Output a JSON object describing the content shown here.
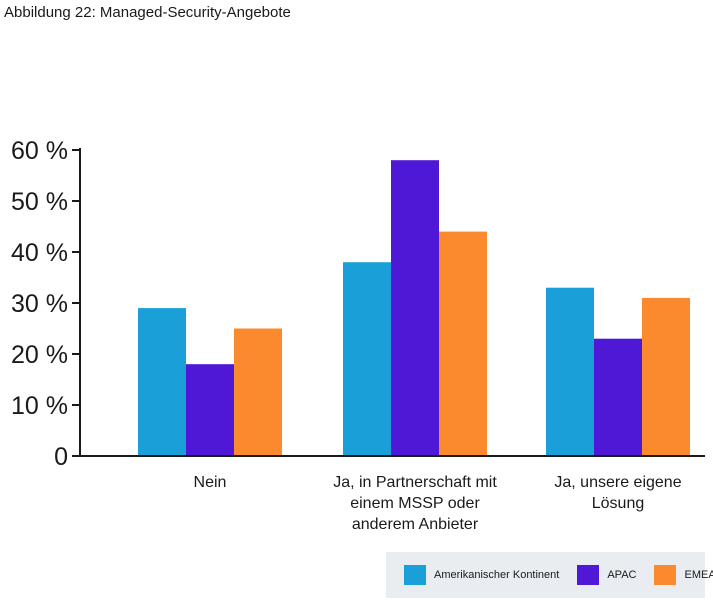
{
  "figure_title": "Abbildung 22: Managed-Security-Angebote",
  "colors": {
    "amerikanischer_kontinent": "#1b9fd9",
    "apac": "#4f17d6",
    "emea": "#fb8a2e",
    "axis": "#1a1a1a",
    "legend_bg": "#e9edf1"
  },
  "chart_data": {
    "type": "bar",
    "title": "Abbildung 22: Managed-Security-Angebote",
    "xlabel": "",
    "ylabel": "",
    "ylim": [
      0,
      60
    ],
    "grid": false,
    "legend_position": "bottom-right",
    "y_ticks": [
      0,
      10,
      20,
      30,
      40,
      50,
      60
    ],
    "y_tick_labels": [
      "0",
      "10 %",
      "20 %",
      "30 %",
      "40 %",
      "50 %",
      "60 %"
    ],
    "categories": [
      [
        "Nein"
      ],
      [
        "Ja, in Partnerschaft mit",
        "einem MSSP oder",
        "anderem Anbieter"
      ],
      [
        "Ja, unsere eigene",
        "Lösung"
      ]
    ],
    "series": [
      {
        "name": "Amerikanischer Kontinent",
        "color": "#1b9fd9",
        "values": [
          29,
          38,
          33
        ]
      },
      {
        "name": "APAC",
        "color": "#4f17d6",
        "values": [
          18,
          58,
          23
        ]
      },
      {
        "name": "EMEA",
        "color": "#fb8a2e",
        "values": [
          25,
          44,
          31
        ]
      }
    ]
  }
}
